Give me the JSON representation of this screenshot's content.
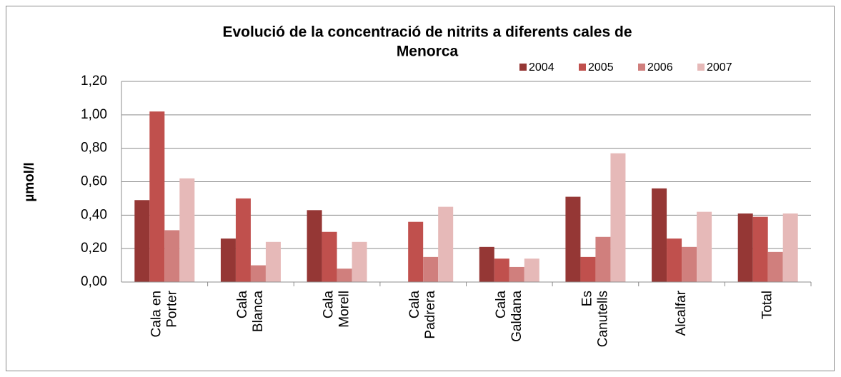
{
  "chart_data": {
    "type": "bar",
    "title": [
      "Evolució de la concentració de nitrits a diferents cales de",
      "Menorca"
    ],
    "y_label": "µmol/l",
    "categories": [
      [
        "Cala en",
        "Porter"
      ],
      [
        "Cala",
        "Blanca"
      ],
      [
        "Cala",
        "Morell"
      ],
      [
        "Cala",
        "Padrera"
      ],
      [
        "Cala",
        "Galdana"
      ],
      [
        "Es",
        "Canutells"
      ],
      [
        "Alcalfar"
      ],
      [
        "Total"
      ]
    ],
    "series": [
      {
        "name": "2004",
        "color": "#953735",
        "values": [
          0.49,
          0.26,
          0.43,
          null,
          0.21,
          0.51,
          0.56,
          0.41
        ]
      },
      {
        "name": "2005",
        "color": "#c0504d",
        "values": [
          1.02,
          0.5,
          0.3,
          0.36,
          0.14,
          0.15,
          0.26,
          0.39
        ]
      },
      {
        "name": "2006",
        "color": "#d07f7d",
        "values": [
          0.31,
          0.1,
          0.08,
          0.15,
          0.09,
          0.27,
          0.21,
          0.18
        ]
      },
      {
        "name": "2007",
        "color": "#e6b9b8",
        "values": [
          0.62,
          0.24,
          0.24,
          0.45,
          0.14,
          0.77,
          0.42,
          0.41
        ]
      }
    ],
    "ylim": [
      0,
      1.2
    ],
    "yticks": [
      {
        "value": 0,
        "label": "0,00"
      },
      {
        "value": 0.2,
        "label": "0,20"
      },
      {
        "value": 0.4,
        "label": "0,40"
      },
      {
        "value": 0.6,
        "label": "0,60"
      },
      {
        "value": 0.8,
        "label": "0,80"
      },
      {
        "value": 1.0,
        "label": "1,00"
      },
      {
        "value": 1.2,
        "label": "1,20"
      }
    ],
    "grid": true
  }
}
